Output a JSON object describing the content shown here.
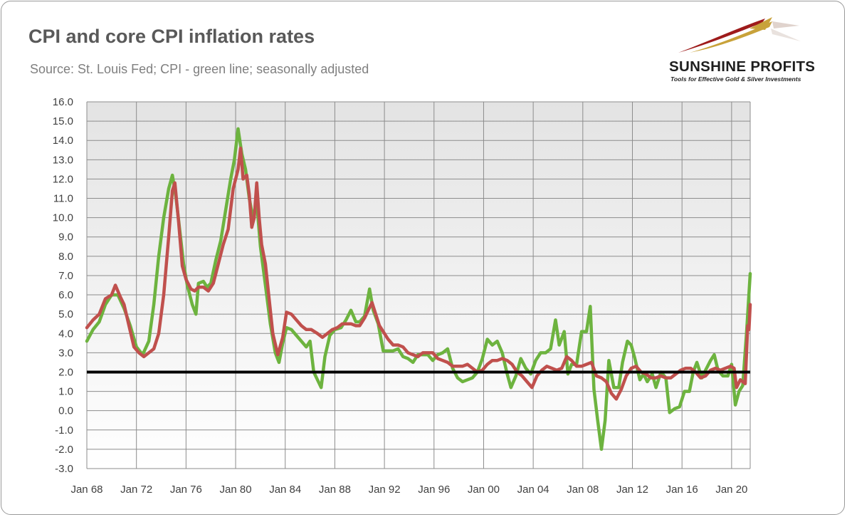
{
  "header": {
    "title": "CPI and core CPI inflation rates",
    "subtitle": "Source: St. Louis Fed; CPI - green line; seasonally adjusted"
  },
  "logo": {
    "name": "SUNSHINE PROFITS",
    "tagline": "Tools for Effective Gold & Silver Investments"
  },
  "chart_data": {
    "type": "line",
    "title": "CPI and core CPI inflation rates",
    "xlabel": "",
    "ylabel": "",
    "xlim": [
      1968.0,
      2021.5
    ],
    "ylim": [
      -3.0,
      16.0
    ],
    "grid": true,
    "legend": "none",
    "x_tick_labels": [
      "Jan 68",
      "Jan 72",
      "Jan 76",
      "Jan 80",
      "Jan 84",
      "Jan 88",
      "Jan 92",
      "Jan 96",
      "Jan 00",
      "Jan 04",
      "Jan 08",
      "Jan 12",
      "Jan 16",
      "Jan 20"
    ],
    "x_tick_years": [
      1968,
      1972,
      1976,
      1980,
      1984,
      1988,
      1992,
      1996,
      2000,
      2004,
      2008,
      2012,
      2016,
      2020
    ],
    "y_tick_labels": [
      "16.0",
      "15.0",
      "14.0",
      "13.0",
      "12.0",
      "11.0",
      "10.0",
      "9.0",
      "8.0",
      "7.0",
      "6.0",
      "5.0",
      "4.0",
      "3.0",
      "2.0",
      "1.0",
      "0.0",
      "-1.0",
      "-2.0",
      "-3.0"
    ],
    "y_tick_values": [
      16,
      15,
      14,
      13,
      12,
      11,
      10,
      9,
      8,
      7,
      6,
      5,
      4,
      3,
      2,
      1,
      0,
      -1,
      -2,
      -3
    ],
    "reference_line": {
      "y": 2.0,
      "color": "#000000"
    },
    "series": [
      {
        "color": "#6db33f",
        "points": [
          [
            1968.0,
            3.6
          ],
          [
            1968.5,
            4.2
          ],
          [
            1969.0,
            4.6
          ],
          [
            1969.5,
            5.5
          ],
          [
            1970.0,
            6.0
          ],
          [
            1970.5,
            6.0
          ],
          [
            1971.0,
            5.3
          ],
          [
            1971.5,
            4.4
          ],
          [
            1972.0,
            3.3
          ],
          [
            1972.5,
            2.9
          ],
          [
            1973.0,
            3.6
          ],
          [
            1973.4,
            5.5
          ],
          [
            1973.8,
            8.0
          ],
          [
            1974.2,
            10.0
          ],
          [
            1974.6,
            11.5
          ],
          [
            1974.9,
            12.2
          ],
          [
            1975.2,
            11.0
          ],
          [
            1975.5,
            9.3
          ],
          [
            1975.8,
            7.6
          ],
          [
            1976.1,
            6.5
          ],
          [
            1976.5,
            5.5
          ],
          [
            1976.8,
            5.0
          ],
          [
            1977.0,
            6.6
          ],
          [
            1977.4,
            6.7
          ],
          [
            1977.7,
            6.4
          ],
          [
            1978.0,
            6.6
          ],
          [
            1978.4,
            7.8
          ],
          [
            1978.8,
            8.8
          ],
          [
            1979.2,
            10.4
          ],
          [
            1979.6,
            12.0
          ],
          [
            1979.9,
            13.0
          ],
          [
            1980.2,
            14.6
          ],
          [
            1980.5,
            13.3
          ],
          [
            1980.8,
            12.5
          ],
          [
            1981.1,
            11.0
          ],
          [
            1981.4,
            10.0
          ],
          [
            1981.7,
            10.8
          ],
          [
            1982.0,
            8.5
          ],
          [
            1982.4,
            6.5
          ],
          [
            1982.8,
            4.5
          ],
          [
            1983.2,
            3.0
          ],
          [
            1983.5,
            2.5
          ],
          [
            1983.8,
            3.5
          ],
          [
            1984.1,
            4.3
          ],
          [
            1984.5,
            4.2
          ],
          [
            1984.9,
            3.9
          ],
          [
            1985.3,
            3.6
          ],
          [
            1985.7,
            3.3
          ],
          [
            1986.0,
            3.6
          ],
          [
            1986.3,
            2.0
          ],
          [
            1986.6,
            1.6
          ],
          [
            1986.9,
            1.2
          ],
          [
            1987.2,
            2.8
          ],
          [
            1987.6,
            3.9
          ],
          [
            1988.0,
            4.2
          ],
          [
            1988.5,
            4.3
          ],
          [
            1988.9,
            4.7
          ],
          [
            1989.3,
            5.2
          ],
          [
            1989.7,
            4.6
          ],
          [
            1990.0,
            4.6
          ],
          [
            1990.4,
            4.9
          ],
          [
            1990.8,
            6.3
          ],
          [
            1991.1,
            5.2
          ],
          [
            1991.5,
            4.5
          ],
          [
            1991.9,
            3.1
          ],
          [
            1992.3,
            3.1
          ],
          [
            1992.7,
            3.1
          ],
          [
            1993.1,
            3.2
          ],
          [
            1993.5,
            2.8
          ],
          [
            1993.9,
            2.7
          ],
          [
            1994.3,
            2.5
          ],
          [
            1994.7,
            2.9
          ],
          [
            1995.1,
            2.9
          ],
          [
            1995.5,
            2.9
          ],
          [
            1995.9,
            2.6
          ],
          [
            1996.3,
            2.9
          ],
          [
            1996.7,
            3.0
          ],
          [
            1997.1,
            3.2
          ],
          [
            1997.5,
            2.2
          ],
          [
            1997.9,
            1.7
          ],
          [
            1998.3,
            1.5
          ],
          [
            1998.7,
            1.6
          ],
          [
            1999.1,
            1.7
          ],
          [
            1999.5,
            2.0
          ],
          [
            1999.9,
            2.7
          ],
          [
            2000.3,
            3.7
          ],
          [
            2000.7,
            3.4
          ],
          [
            2001.1,
            3.6
          ],
          [
            2001.5,
            3.0
          ],
          [
            2001.9,
            1.9
          ],
          [
            2002.2,
            1.2
          ],
          [
            2002.6,
            1.8
          ],
          [
            2003.0,
            2.7
          ],
          [
            2003.4,
            2.2
          ],
          [
            2003.8,
            1.9
          ],
          [
            2004.2,
            2.6
          ],
          [
            2004.6,
            3.0
          ],
          [
            2005.0,
            3.0
          ],
          [
            2005.4,
            3.2
          ],
          [
            2005.8,
            4.7
          ],
          [
            2006.1,
            3.4
          ],
          [
            2006.5,
            4.1
          ],
          [
            2006.8,
            1.9
          ],
          [
            2007.1,
            2.4
          ],
          [
            2007.5,
            2.4
          ],
          [
            2007.9,
            4.1
          ],
          [
            2008.3,
            4.1
          ],
          [
            2008.6,
            5.4
          ],
          [
            2008.9,
            1.1
          ],
          [
            2009.2,
            -0.5
          ],
          [
            2009.5,
            -2.0
          ],
          [
            2009.8,
            -0.5
          ],
          [
            2010.1,
            2.6
          ],
          [
            2010.5,
            1.2
          ],
          [
            2010.9,
            1.2
          ],
          [
            2011.2,
            2.5
          ],
          [
            2011.6,
            3.6
          ],
          [
            2011.9,
            3.4
          ],
          [
            2012.2,
            2.7
          ],
          [
            2012.6,
            1.6
          ],
          [
            2012.9,
            1.9
          ],
          [
            2013.2,
            1.5
          ],
          [
            2013.6,
            1.9
          ],
          [
            2013.9,
            1.2
          ],
          [
            2014.3,
            2.0
          ],
          [
            2014.7,
            1.7
          ],
          [
            2015.0,
            -0.1
          ],
          [
            2015.4,
            0.1
          ],
          [
            2015.8,
            0.2
          ],
          [
            2016.2,
            1.0
          ],
          [
            2016.6,
            1.0
          ],
          [
            2016.9,
            2.0
          ],
          [
            2017.2,
            2.5
          ],
          [
            2017.6,
            1.7
          ],
          [
            2017.9,
            2.1
          ],
          [
            2018.3,
            2.6
          ],
          [
            2018.6,
            2.9
          ],
          [
            2018.9,
            2.1
          ],
          [
            2019.3,
            1.8
          ],
          [
            2019.7,
            1.8
          ],
          [
            2020.0,
            2.4
          ],
          [
            2020.3,
            0.3
          ],
          [
            2020.6,
            1.0
          ],
          [
            2020.9,
            1.3
          ],
          [
            2021.2,
            4.0
          ],
          [
            2021.3,
            5.0
          ],
          [
            2021.5,
            7.1
          ]
        ]
      },
      {
        "color": "#c0504d",
        "points": [
          [
            1968.0,
            4.3
          ],
          [
            1968.5,
            4.7
          ],
          [
            1969.0,
            5.0
          ],
          [
            1969.5,
            5.8
          ],
          [
            1970.0,
            6.0
          ],
          [
            1970.3,
            6.5
          ],
          [
            1970.7,
            5.9
          ],
          [
            1971.0,
            5.5
          ],
          [
            1971.4,
            4.4
          ],
          [
            1971.8,
            3.3
          ],
          [
            1972.2,
            3.0
          ],
          [
            1972.6,
            2.8
          ],
          [
            1973.0,
            3.0
          ],
          [
            1973.4,
            3.2
          ],
          [
            1973.8,
            4.0
          ],
          [
            1974.2,
            6.0
          ],
          [
            1974.6,
            9.0
          ],
          [
            1974.9,
            11.4
          ],
          [
            1975.1,
            11.8
          ],
          [
            1975.4,
            9.8
          ],
          [
            1975.7,
            7.5
          ],
          [
            1976.0,
            6.8
          ],
          [
            1976.4,
            6.3
          ],
          [
            1976.7,
            6.2
          ],
          [
            1977.0,
            6.4
          ],
          [
            1977.4,
            6.4
          ],
          [
            1977.8,
            6.2
          ],
          [
            1978.2,
            6.6
          ],
          [
            1978.6,
            7.6
          ],
          [
            1979.0,
            8.6
          ],
          [
            1979.4,
            9.4
          ],
          [
            1979.8,
            11.5
          ],
          [
            1980.2,
            12.5
          ],
          [
            1980.4,
            13.6
          ],
          [
            1980.6,
            12.0
          ],
          [
            1980.9,
            12.2
          ],
          [
            1981.1,
            11.2
          ],
          [
            1981.3,
            9.5
          ],
          [
            1981.5,
            10.0
          ],
          [
            1981.7,
            11.8
          ],
          [
            1981.9,
            10.0
          ],
          [
            1982.1,
            8.6
          ],
          [
            1982.4,
            7.6
          ],
          [
            1982.7,
            5.8
          ],
          [
            1983.0,
            4.0
          ],
          [
            1983.4,
            2.9
          ],
          [
            1983.8,
            3.8
          ],
          [
            1984.1,
            5.1
          ],
          [
            1984.5,
            5.0
          ],
          [
            1984.9,
            4.7
          ],
          [
            1985.3,
            4.4
          ],
          [
            1985.7,
            4.2
          ],
          [
            1986.1,
            4.2
          ],
          [
            1986.6,
            4.0
          ],
          [
            1987.0,
            3.8
          ],
          [
            1987.4,
            4.0
          ],
          [
            1987.8,
            4.2
          ],
          [
            1988.2,
            4.3
          ],
          [
            1988.6,
            4.5
          ],
          [
            1988.9,
            4.5
          ],
          [
            1989.3,
            4.5
          ],
          [
            1989.7,
            4.4
          ],
          [
            1990.0,
            4.4
          ],
          [
            1990.4,
            4.8
          ],
          [
            1990.7,
            5.2
          ],
          [
            1991.0,
            5.6
          ],
          [
            1991.3,
            5.0
          ],
          [
            1991.6,
            4.4
          ],
          [
            1991.9,
            4.1
          ],
          [
            1992.3,
            3.7
          ],
          [
            1992.7,
            3.4
          ],
          [
            1993.1,
            3.4
          ],
          [
            1993.5,
            3.3
          ],
          [
            1993.9,
            3.0
          ],
          [
            1994.3,
            2.9
          ],
          [
            1994.7,
            2.8
          ],
          [
            1995.1,
            3.0
          ],
          [
            1995.5,
            3.0
          ],
          [
            1995.9,
            3.0
          ],
          [
            1996.3,
            2.7
          ],
          [
            1996.7,
            2.6
          ],
          [
            1997.1,
            2.5
          ],
          [
            1997.5,
            2.3
          ],
          [
            1997.9,
            2.3
          ],
          [
            1998.3,
            2.3
          ],
          [
            1998.7,
            2.4
          ],
          [
            1999.1,
            2.2
          ],
          [
            1999.5,
            2.0
          ],
          [
            1999.9,
            2.1
          ],
          [
            2000.3,
            2.4
          ],
          [
            2000.7,
            2.6
          ],
          [
            2001.1,
            2.6
          ],
          [
            2001.5,
            2.7
          ],
          [
            2001.9,
            2.6
          ],
          [
            2002.3,
            2.4
          ],
          [
            2002.7,
            2.0
          ],
          [
            2003.1,
            1.8
          ],
          [
            2003.5,
            1.5
          ],
          [
            2003.9,
            1.2
          ],
          [
            2004.3,
            1.8
          ],
          [
            2004.7,
            2.1
          ],
          [
            2005.1,
            2.3
          ],
          [
            2005.5,
            2.2
          ],
          [
            2005.9,
            2.1
          ],
          [
            2006.3,
            2.2
          ],
          [
            2006.7,
            2.8
          ],
          [
            2007.1,
            2.6
          ],
          [
            2007.5,
            2.3
          ],
          [
            2007.9,
            2.3
          ],
          [
            2008.3,
            2.4
          ],
          [
            2008.7,
            2.5
          ],
          [
            2009.1,
            1.8
          ],
          [
            2009.5,
            1.7
          ],
          [
            2009.9,
            1.5
          ],
          [
            2010.3,
            0.9
          ],
          [
            2010.7,
            0.6
          ],
          [
            2011.1,
            1.1
          ],
          [
            2011.5,
            1.8
          ],
          [
            2011.9,
            2.2
          ],
          [
            2012.3,
            2.3
          ],
          [
            2012.7,
            2.0
          ],
          [
            2013.1,
            1.9
          ],
          [
            2013.5,
            1.7
          ],
          [
            2013.9,
            1.7
          ],
          [
            2014.3,
            1.8
          ],
          [
            2014.7,
            1.7
          ],
          [
            2015.1,
            1.7
          ],
          [
            2015.5,
            1.9
          ],
          [
            2015.9,
            2.1
          ],
          [
            2016.3,
            2.2
          ],
          [
            2016.7,
            2.2
          ],
          [
            2017.1,
            2.0
          ],
          [
            2017.5,
            1.7
          ],
          [
            2017.9,
            1.8
          ],
          [
            2018.3,
            2.1
          ],
          [
            2018.7,
            2.2
          ],
          [
            2019.1,
            2.1
          ],
          [
            2019.5,
            2.2
          ],
          [
            2019.9,
            2.3
          ],
          [
            2020.2,
            2.2
          ],
          [
            2020.4,
            1.2
          ],
          [
            2020.7,
            1.6
          ],
          [
            2020.9,
            1.5
          ],
          [
            2021.1,
            1.4
          ],
          [
            2021.3,
            4.4
          ],
          [
            2021.4,
            4.2
          ],
          [
            2021.5,
            5.5
          ]
        ]
      }
    ]
  }
}
